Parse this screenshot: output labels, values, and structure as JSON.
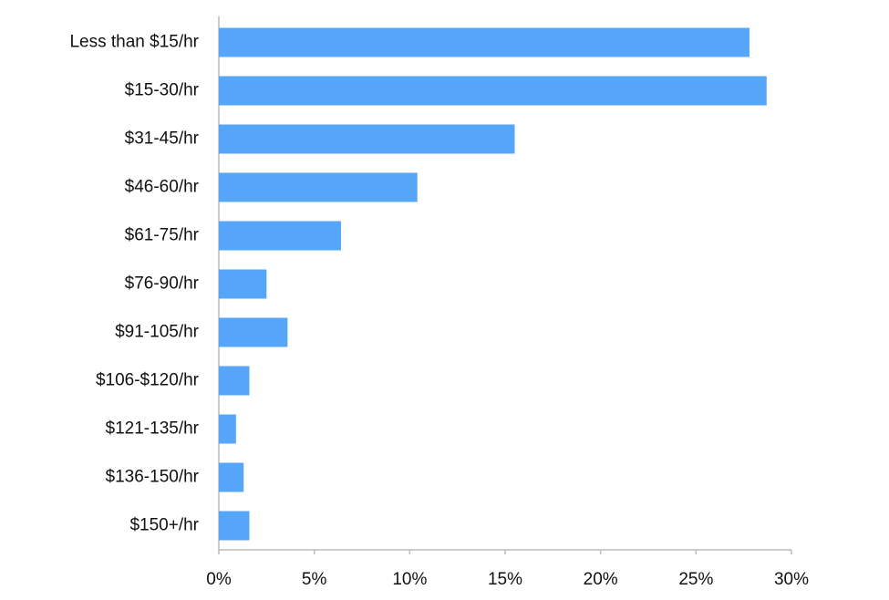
{
  "chart_data": {
    "type": "barh",
    "categories": [
      "Less than $15/hr",
      "$15-30/hr",
      "$31-45/hr",
      "$46-60/hr",
      "$61-75/hr",
      "$76-90/hr",
      "$91-105/hr",
      "$106-$120/hr",
      "$121-135/hr",
      "$136-150/hr",
      "$150+/hr"
    ],
    "values": [
      27.8,
      28.7,
      15.5,
      10.4,
      6.4,
      2.5,
      3.6,
      1.6,
      0.9,
      1.3,
      1.6
    ],
    "color": "#55a5f8",
    "xlim": [
      0,
      30
    ],
    "xticks": [
      {
        "value": 0,
        "label": "0%"
      },
      {
        "value": 5,
        "label": "5%"
      },
      {
        "value": 10,
        "label": "10%"
      },
      {
        "value": 15,
        "label": "15%"
      },
      {
        "value": 20,
        "label": "20%"
      },
      {
        "value": 25,
        "label": "25%"
      },
      {
        "value": 30,
        "label": "30%"
      }
    ],
    "grid": false
  }
}
